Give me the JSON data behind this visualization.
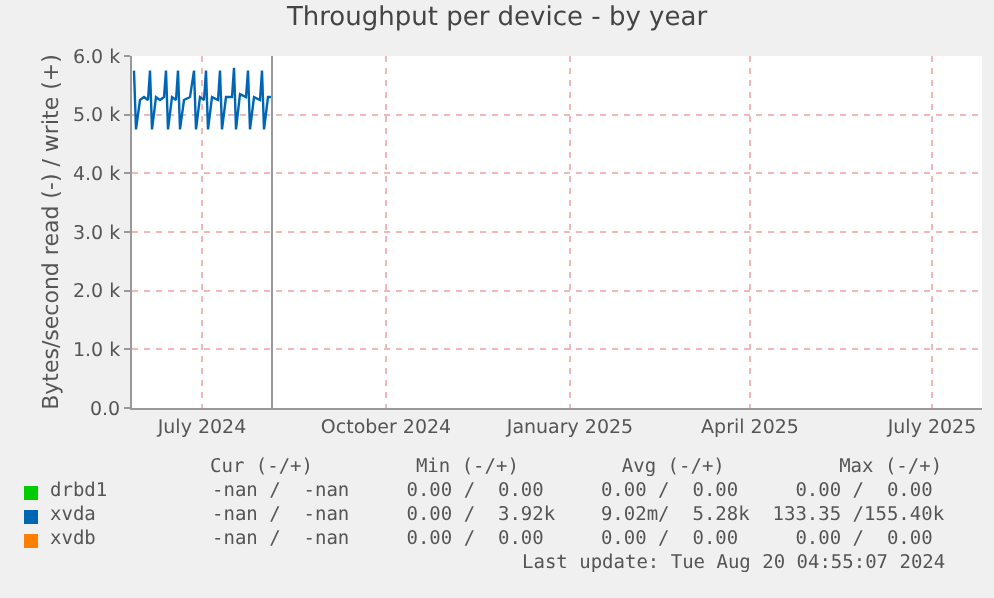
{
  "chart_data": {
    "type": "line",
    "title": "Throughput per device - by year",
    "ylabel": "Bytes/second read (-) / write (+)",
    "xlim": [
      "2024-05-27",
      "2025-07-26"
    ],
    "xticks": [
      {
        "value": "2024-07-01",
        "label": "July 2024"
      },
      {
        "value": "2024-10-01",
        "label": "October 2024"
      },
      {
        "value": "2025-01-01",
        "label": "January 2025"
      },
      {
        "value": "2025-04-01",
        "label": "April 2025"
      },
      {
        "value": "2025-07-01",
        "label": "July 2025"
      }
    ],
    "ylim": [
      0,
      6000
    ],
    "yticks": [
      {
        "value": 0,
        "label": "0.0"
      },
      {
        "value": 1000,
        "label": "1.0 k"
      },
      {
        "value": 2000,
        "label": "2.0 k"
      },
      {
        "value": 3000,
        "label": "3.0 k"
      },
      {
        "value": 4000,
        "label": "4.0 k"
      },
      {
        "value": 5000,
        "label": "5.0 k"
      },
      {
        "value": 6000,
        "label": "6.0 k"
      }
    ],
    "grid": true,
    "legend": "bottom",
    "ref_lines": [
      {
        "axis": "x",
        "value": "2024-08-05",
        "color": "#999999"
      }
    ],
    "series": [
      {
        "name": "drbd1",
        "color": "#00cc00"
      },
      {
        "name": "xvda",
        "color": "#0066b3",
        "x": [
          "2024-05-28",
          "2024-05-29",
          "2024-05-31",
          "2024-06-02",
          "2024-06-04",
          "2024-06-05",
          "2024-06-06",
          "2024-06-08",
          "2024-06-10",
          "2024-06-12",
          "2024-06-13",
          "2024-06-14",
          "2024-06-16",
          "2024-06-18",
          "2024-06-19",
          "2024-06-20",
          "2024-06-22",
          "2024-06-25",
          "2024-06-27",
          "2024-06-28",
          "2024-06-30",
          "2024-07-02",
          "2024-07-03",
          "2024-07-04",
          "2024-07-06",
          "2024-07-09",
          "2024-07-10",
          "2024-07-11",
          "2024-07-13",
          "2024-07-16",
          "2024-07-17",
          "2024-07-18",
          "2024-07-20",
          "2024-07-23",
          "2024-07-24",
          "2024-07-25",
          "2024-07-27",
          "2024-07-30",
          "2024-07-31",
          "2024-08-01",
          "2024-08-03",
          "2024-08-05"
        ],
        "values": [
          5750,
          4750,
          5250,
          5300,
          5250,
          5750,
          4750,
          5300,
          5250,
          5300,
          5750,
          4750,
          5300,
          5250,
          5750,
          4750,
          5250,
          5300,
          5750,
          4750,
          5300,
          5250,
          5750,
          4750,
          5300,
          5250,
          5750,
          4750,
          5300,
          5300,
          5800,
          4750,
          5350,
          5300,
          5750,
          4750,
          5300,
          5250,
          5750,
          4750,
          5300,
          5300
        ]
      },
      {
        "name": "xvdb",
        "color": "#ff8000"
      }
    ],
    "annotations": [
      "Cur (-/+)         Min (-/+)         Avg (-/+)          Max (-/+)",
      "-nan /  -nan     0.00 /  0.00     0.00 /  0.00     0.00 /  0.00",
      "-nan /  -nan     0.00 /  3.92k    9.02m/  5.28k  133.35 /155.40k",
      "-nan /  -nan     0.00 /  0.00     0.00 /  0.00     0.00 /  0.00",
      "Last update: Tue Aug 20 04:55:07 2024"
    ]
  }
}
